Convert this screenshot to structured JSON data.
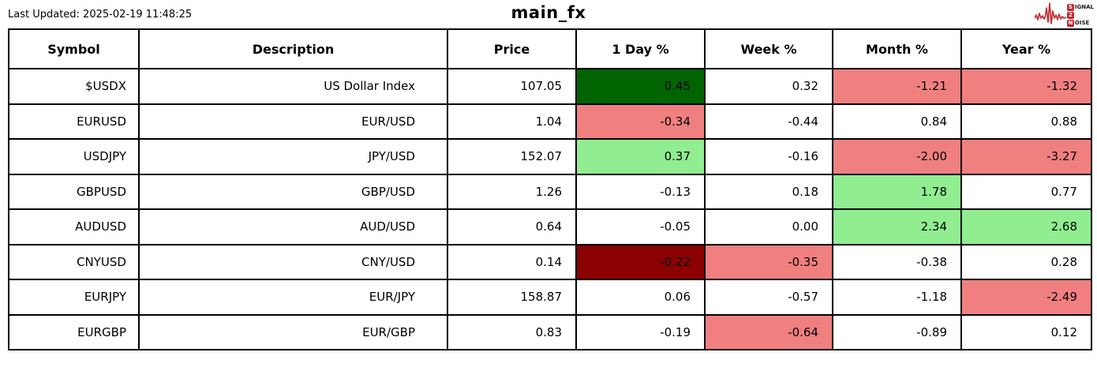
{
  "meta": {
    "last_updated": "Last Updated: 2025-02-19 11:48:25",
    "title": "main_fx"
  },
  "logo": {
    "name": "signal-2-noise-logo",
    "brand_color": "#c1272d",
    "line1_boxed": "S",
    "line1_rest": "IGNAL",
    "line2_boxed": "2",
    "line3_boxed": "N",
    "line3_rest": "OISE"
  },
  "colors": {
    "dark_green": "#006400",
    "light_green": "#90ee90",
    "light_coral": "#f08080",
    "dark_red": "#8b0000",
    "white": "#ffffff",
    "border": "#000000"
  },
  "table": {
    "headers": [
      "Symbol",
      "Description",
      "Price",
      "1 Day %",
      "Week %",
      "Month %",
      "Year %"
    ],
    "rows": [
      {
        "symbol": "$USDX",
        "description": "US Dollar Index",
        "price": "107.05",
        "day": {
          "value": "0.45",
          "bg": "dark_green"
        },
        "week": {
          "value": "0.32",
          "bg": "white"
        },
        "month": {
          "value": "-1.21",
          "bg": "light_coral"
        },
        "year": {
          "value": "-1.32",
          "bg": "light_coral"
        }
      },
      {
        "symbol": "EURUSD",
        "description": "EUR/USD",
        "price": "1.04",
        "day": {
          "value": "-0.34",
          "bg": "light_coral"
        },
        "week": {
          "value": "-0.44",
          "bg": "white"
        },
        "month": {
          "value": "0.84",
          "bg": "white"
        },
        "year": {
          "value": "0.88",
          "bg": "white"
        }
      },
      {
        "symbol": "USDJPY",
        "description": "JPY/USD",
        "price": "152.07",
        "day": {
          "value": "0.37",
          "bg": "light_green"
        },
        "week": {
          "value": "-0.16",
          "bg": "white"
        },
        "month": {
          "value": "-2.00",
          "bg": "light_coral"
        },
        "year": {
          "value": "-3.27",
          "bg": "light_coral"
        }
      },
      {
        "symbol": "GBPUSD",
        "description": "GBP/USD",
        "price": "1.26",
        "day": {
          "value": "-0.13",
          "bg": "white"
        },
        "week": {
          "value": "0.18",
          "bg": "white"
        },
        "month": {
          "value": "1.78",
          "bg": "light_green"
        },
        "year": {
          "value": "0.77",
          "bg": "white"
        }
      },
      {
        "symbol": "AUDUSD",
        "description": "AUD/USD",
        "price": "0.64",
        "day": {
          "value": "-0.05",
          "bg": "white"
        },
        "week": {
          "value": "0.00",
          "bg": "white"
        },
        "month": {
          "value": "2.34",
          "bg": "light_green"
        },
        "year": {
          "value": "2.68",
          "bg": "light_green"
        }
      },
      {
        "symbol": "CNYUSD",
        "description": "CNY/USD",
        "price": "0.14",
        "day": {
          "value": "-0.22",
          "bg": "dark_red"
        },
        "week": {
          "value": "-0.35",
          "bg": "light_coral"
        },
        "month": {
          "value": "-0.38",
          "bg": "white"
        },
        "year": {
          "value": "0.28",
          "bg": "white"
        }
      },
      {
        "symbol": "EURJPY",
        "description": "EUR/JPY",
        "price": "158.87",
        "day": {
          "value": "0.06",
          "bg": "white"
        },
        "week": {
          "value": "-0.57",
          "bg": "white"
        },
        "month": {
          "value": "-1.18",
          "bg": "white"
        },
        "year": {
          "value": "-2.49",
          "bg": "light_coral"
        }
      },
      {
        "symbol": "EURGBP",
        "description": "EUR/GBP",
        "price": "0.83",
        "day": {
          "value": "-0.19",
          "bg": "white"
        },
        "week": {
          "value": "-0.64",
          "bg": "light_coral"
        },
        "month": {
          "value": "-0.89",
          "bg": "white"
        },
        "year": {
          "value": "0.12",
          "bg": "white"
        }
      }
    ]
  },
  "chart_data": {
    "type": "table",
    "title": "main_fx",
    "columns": [
      "Symbol",
      "Description",
      "Price",
      "1 Day %",
      "Week %",
      "Month %",
      "Year %"
    ],
    "rows": [
      [
        "$USDX",
        "US Dollar Index",
        107.05,
        0.45,
        0.32,
        -1.21,
        -1.32
      ],
      [
        "EURUSD",
        "EUR/USD",
        1.04,
        -0.34,
        -0.44,
        0.84,
        0.88
      ],
      [
        "USDJPY",
        "JPY/USD",
        152.07,
        0.37,
        -0.16,
        -2.0,
        -3.27
      ],
      [
        "GBPUSD",
        "GBP/USD",
        1.26,
        -0.13,
        0.18,
        1.78,
        0.77
      ],
      [
        "AUDUSD",
        "AUD/USD",
        0.64,
        -0.05,
        0.0,
        2.34,
        2.68
      ],
      [
        "CNYUSD",
        "CNY/USD",
        0.14,
        -0.22,
        -0.35,
        -0.38,
        0.28
      ],
      [
        "EURJPY",
        "EUR/JPY",
        158.87,
        0.06,
        -0.57,
        -1.18,
        -2.49
      ],
      [
        "EURGBP",
        "EUR/GBP",
        0.83,
        -0.19,
        -0.64,
        -0.89,
        0.12
      ]
    ],
    "cell_highlights": "positive extremes dark/light green, negative extremes dark red/light coral",
    "layout": {
      "grid": true,
      "border_color": "#000000"
    }
  }
}
